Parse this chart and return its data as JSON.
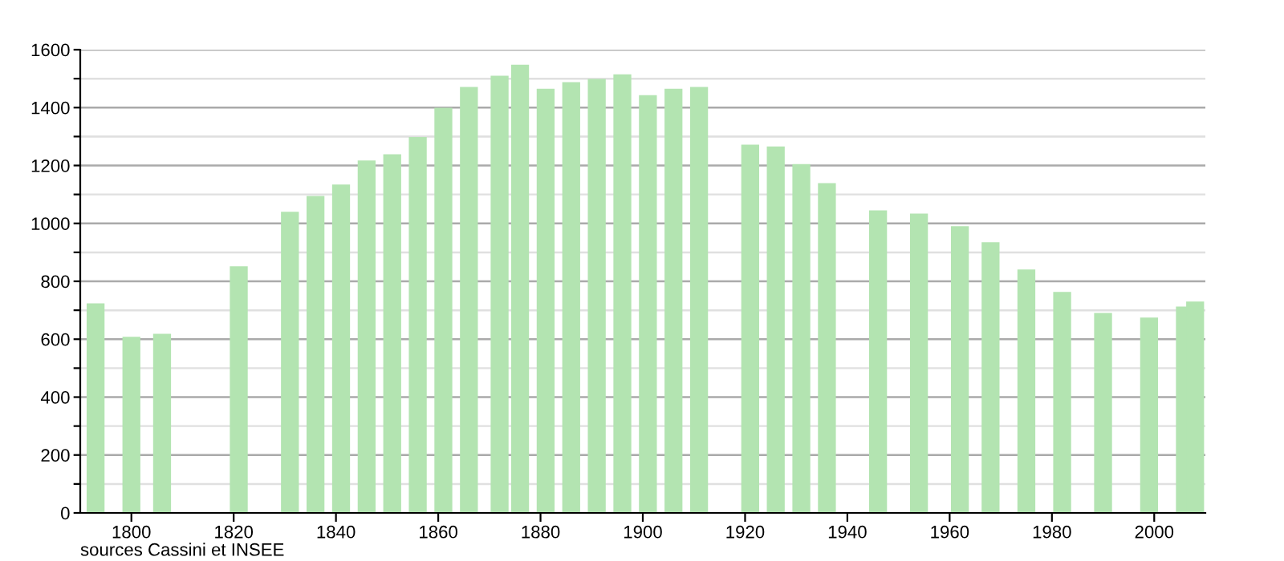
{
  "chart_data": {
    "type": "bar",
    "x": [
      1793,
      1800,
      1806,
      1821,
      1831,
      1836,
      1841,
      1846,
      1851,
      1856,
      1861,
      1866,
      1872,
      1876,
      1881,
      1886,
      1891,
      1896,
      1901,
      1906,
      1911,
      1921,
      1926,
      1931,
      1936,
      1946,
      1954,
      1962,
      1968,
      1975,
      1982,
      1990,
      1999,
      2006,
      2008
    ],
    "values": [
      724,
      608,
      619,
      852,
      1040,
      1095,
      1134,
      1217,
      1239,
      1298,
      1399,
      1471,
      1510,
      1548,
      1465,
      1488,
      1499,
      1515,
      1443,
      1465,
      1471,
      1272,
      1266,
      1205,
      1139,
      1045,
      1034,
      990,
      935,
      841,
      763,
      691,
      675,
      713,
      730
    ],
    "color": "#b3e4b1",
    "xlim": [
      1790,
      2010
    ],
    "xticks": [
      1800,
      1820,
      1840,
      1860,
      1880,
      1900,
      1920,
      1940,
      1960,
      1980,
      2000
    ],
    "ylim": [
      0,
      1600
    ],
    "yticks": [
      0,
      {
        "value": 100,
        "label": null
      },
      200,
      {
        "value": 300,
        "label": null
      },
      400,
      {
        "value": 500,
        "label": null
      },
      600,
      {
        "value": 700,
        "label": null
      },
      800,
      {
        "value": 900,
        "label": null
      },
      1000,
      {
        "value": 1100,
        "label": null
      },
      1200,
      {
        "value": 1300,
        "label": null
      },
      1400,
      {
        "value": 1500,
        "label": null
      },
      1600
    ],
    "grid": "y",
    "annotations": [
      "sources Cassini et INSEE"
    ]
  }
}
